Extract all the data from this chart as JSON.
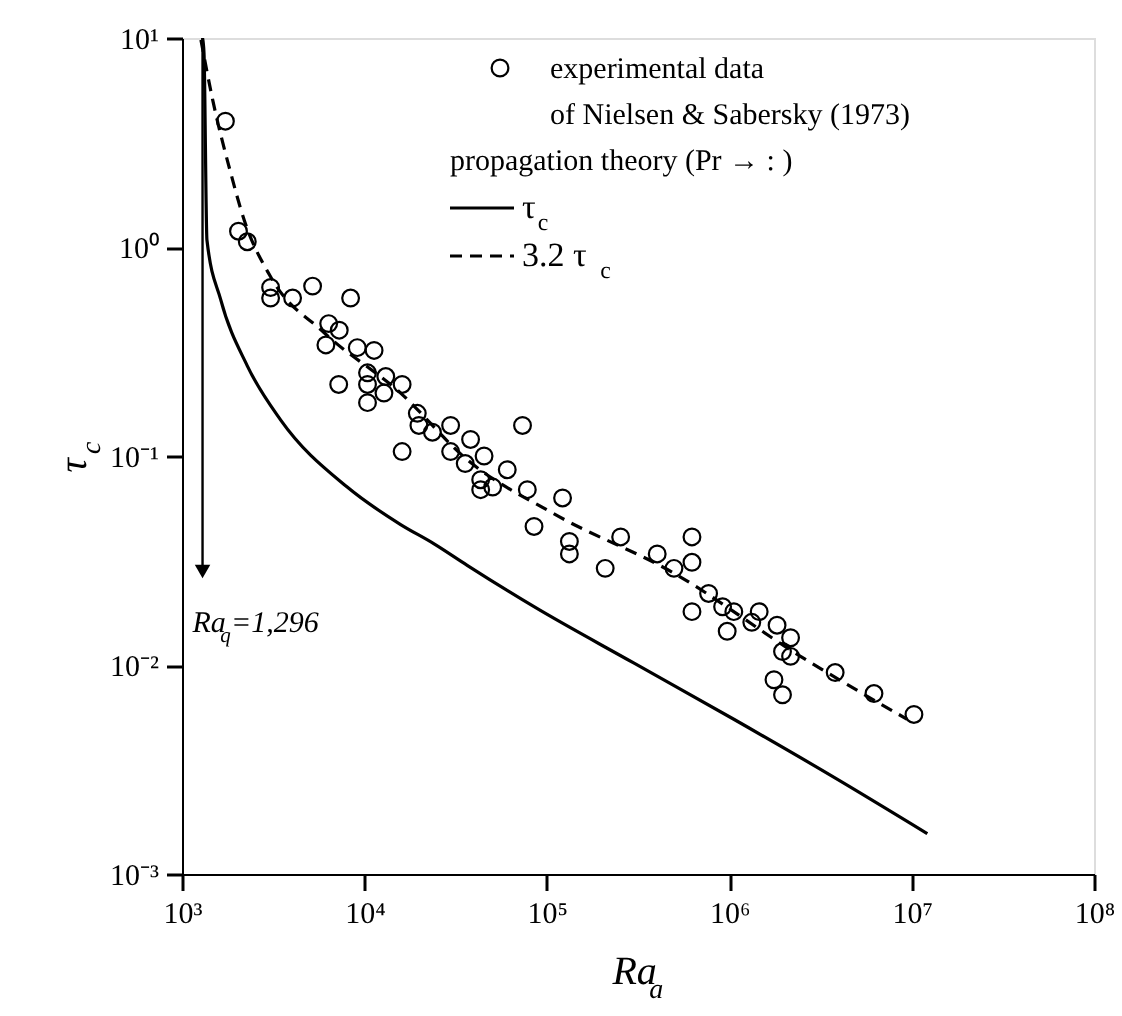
{
  "chart_data": {
    "type": "scatter",
    "xlabel": "Ra$_{a}$",
    "ylabel": "τ$_{c}$",
    "log": "xy",
    "legend": "top right",
    "legend_title": "propagation theory (Pr → :  )",
    "xlim": [
      1000,
      100000000
    ],
    "ylim": [
      0.001,
      10
    ],
    "xticks": [
      {
        "value": 1000,
        "label": "10³"
      },
      {
        "value": 10000,
        "label": "10⁴"
      },
      {
        "value": 100000,
        "label": "10⁵"
      },
      {
        "value": 1000000,
        "label": "10⁶"
      },
      {
        "value": 10000000,
        "label": "10⁷"
      },
      {
        "value": 100000000,
        "label": "10⁸"
      }
    ],
    "yticks": [
      {
        "value": 0.001,
        "label": "10⁻³"
      },
      {
        "value": 0.01,
        "label": "10⁻²"
      },
      {
        "value": 0.1,
        "label": "10⁻¹"
      },
      {
        "value": 1,
        "label": "10⁰"
      },
      {
        "value": 10,
        "label": "10¹"
      }
    ],
    "annotations": [
      {
        "text": "Ra$_{q}$=1,296",
        "x": 1296,
        "y": 0.028
      }
    ],
    "series": [
      {
        "name": "experimental data\nof Nielsen & Sabersky (1973)",
        "marker": "circle",
        "color": "#000000",
        "x": [
          1730,
          2040,
          2280,
          3060,
          3060,
          4040,
          5200,
          8400,
          6370,
          7280,
          6150,
          9140,
          11300,
          7230,
          10400,
          10400,
          13100,
          16100,
          10400,
          12800,
          19500,
          19900,
          23600,
          29700,
          38200,
          29700,
          45300,
          35700,
          73600,
          16100,
          43400,
          43400,
          50500,
          60700,
          78200,
          122000,
          85100,
          133000,
          133000,
          209000,
          254000,
          403000,
          498000,
          625000,
          625000,
          625000,
          771000,
          920000,
          975000,
          1060000,
          1330000,
          1460000,
          1830000,
          2170000,
          1960000,
          2170000,
          1760000,
          1960000,
          3810000,
          6220000,
          10300000
        ],
        "values": [
          4.0,
          1.19,
          1.06,
          0.64,
          0.57,
          0.57,
          0.65,
          0.57,
          0.43,
          0.4,
          0.34,
          0.33,
          0.32,
          0.22,
          0.25,
          0.22,
          0.24,
          0.22,
          0.18,
          0.2,
          0.16,
          0.14,
          0.13,
          0.14,
          0.12,
          0.105,
          0.1,
          0.092,
          0.14,
          0.105,
          0.077,
          0.069,
          0.071,
          0.086,
          0.069,
          0.063,
          0.046,
          0.039,
          0.034,
          0.029,
          0.041,
          0.034,
          0.029,
          0.041,
          0.031,
          0.018,
          0.022,
          0.019,
          0.0145,
          0.018,
          0.016,
          0.018,
          0.0155,
          0.0135,
          0.0116,
          0.011,
          0.0085,
          0.0072,
          0.0092,
          0.0073,
          0.0058
        ]
      },
      {
        "name": "τ$_{c}$",
        "type": "line",
        "line_style": "solid",
        "color": "#000000",
        "x": [
          1296,
          1320,
          1370,
          1630,
          2280,
          3470,
          8050,
          15800,
          24100,
          36600,
          85100,
          301000,
          1060000,
          3760000,
          12200000
        ],
        "values": [
          10,
          8.5,
          1.08,
          0.56,
          0.27,
          0.149,
          0.071,
          0.047,
          0.038,
          0.03,
          0.019,
          0.0102,
          0.0055,
          0.0029,
          0.00156
        ]
      },
      {
        "name": "3.2 τ$_{c}$",
        "type": "line",
        "line_style": "dashed",
        "color": "#000000",
        "x": [
          1270,
          1470,
          1850,
          2190,
          3060,
          6000,
          15800,
          36600,
          109000,
          498000,
          2460000,
          9460000
        ],
        "values": [
          9.8,
          5.1,
          2.26,
          1.35,
          0.72,
          0.39,
          0.2,
          0.096,
          0.053,
          0.0275,
          0.011,
          0.0055
        ]
      }
    ]
  }
}
